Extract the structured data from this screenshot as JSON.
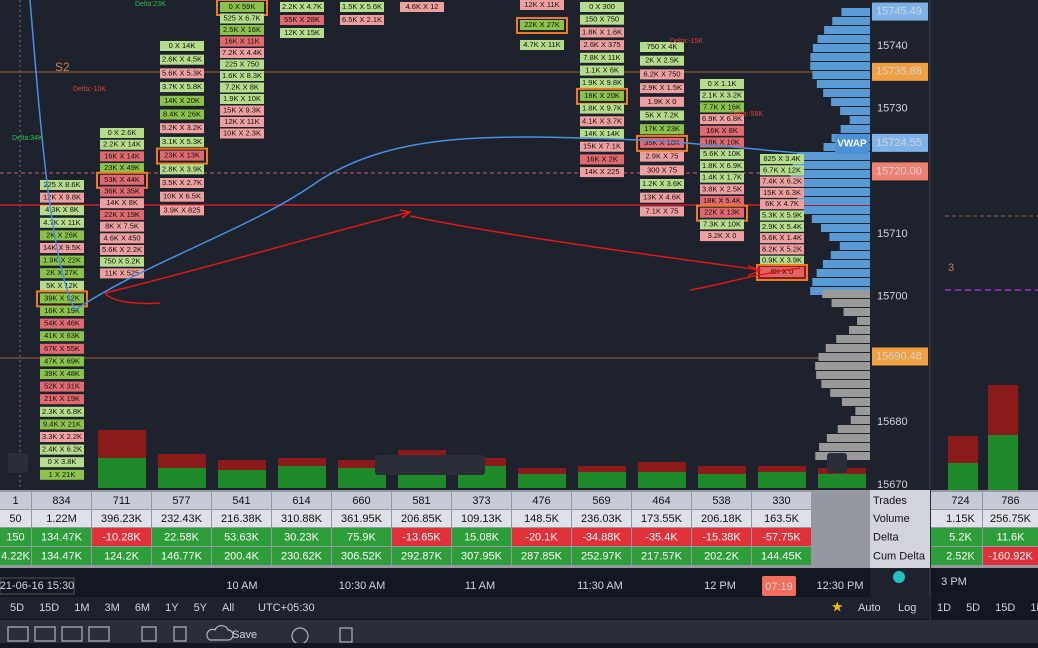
{
  "level_label": "S2",
  "vwap_label": "VWAP",
  "price_axis": [
    "15740",
    "15730",
    "15710",
    "15700",
    "15680",
    "15670"
  ],
  "price_badges": [
    {
      "label": "15745.49",
      "color": "#7fb3e8"
    },
    {
      "label": "15735.88",
      "color": "#f0a040"
    },
    {
      "label": "15724.55",
      "color": "#7fb3e8"
    },
    {
      "label": "15720.00",
      "color": "#f08070"
    },
    {
      "label": "15690.48",
      "color": "#f0a040"
    }
  ],
  "delta_notes": [
    {
      "text": "Delta:23K",
      "color": "#2ec04a"
    },
    {
      "text": "Delta:-10K",
      "color": "#e0403a"
    },
    {
      "text": "Delta:34K",
      "color": "#2ec04a"
    },
    {
      "text": "Delta:-15K",
      "color": "#e0403a"
    },
    {
      "text": "Delta:-58K",
      "color": "#e0403a"
    }
  ],
  "footprint": [
    [
      "225 X 8.6K",
      "12K X 9.8K",
      "4.3K X 8K",
      "4.7K X 11K",
      "2K X 26K",
      "14K X 9.5K",
      "1.9K X 22K",
      "2K X 27K",
      "5K X 12K",
      "39K X 92K",
      "16K X 19K",
      "54K X 46K",
      "41K X 63K",
      "67K X 55K",
      "47K X 69K",
      "39K X 48K",
      "52K X 31K",
      "21K X 19K",
      "2.3K X 6.8K",
      "9.4K X 21K",
      "3.3K X 2.2K",
      "2.4K X 6.2K",
      "0 X 3.8K",
      "1 X 21K"
    ],
    [
      "0 X 2.6K",
      "2.2K X 14K",
      "16K X 14K",
      "23K X 49K",
      "53K X 44K",
      "36K X 35K",
      "14K X 8K",
      "22K X 19K",
      "8K X 7.5K",
      "4.6K X 450",
      "5.6K X 2.2K",
      "750 X 5.2K",
      "11K X 525"
    ],
    [
      "0 X 14K",
      "2.6K X 4.5K",
      "5.6K X 5.3K",
      "3.7K X 5.8K",
      "14K X 20K",
      "8.4K X 26K",
      "5.2K X 3.2K",
      "3.1K X 5.3K",
      "23K X 13K",
      "2.8K X 3.9K",
      "3.5K X 2.7K",
      "10K X 6.5K",
      "3.9K X 825"
    ],
    [
      "0 X 59K",
      "525 X 6.7K",
      "2.5K X 16K",
      "16K X 11K",
      "7.2K X 4.4K",
      "225 X 750",
      "1.6K X 8.3K",
      "7.2K X 8K",
      "1.9K X 10K",
      "15K X 9.3K",
      "12K X 11K",
      "10K X 2.3K"
    ],
    [
      "2.2K X 4.7K",
      "55K X 28K",
      "12K X 15K"
    ],
    [
      "1.5K X 5.6K",
      "6.5K X 2.1K"
    ],
    [
      "4.6K X 12"
    ],
    [
      "12K X 11K",
      "22K X 27K",
      "4.7K X 11K"
    ],
    [
      "0 X 300",
      "150 X 750",
      "1.8K X 1.6K",
      "2.6K X 375",
      "7.8K X 11K",
      "1.1K X 6K",
      "1.9K X 9.8K",
      "18K X 20K",
      "1.8K X 9.7K",
      "4.1K X 3.7K",
      "14K X 14K",
      "15K X 7.1K",
      "16K X 2K",
      "14K X 225"
    ],
    [
      "750 X 4K",
      "2K X 2.5K",
      "6.2K X 750",
      "2.9K X 1.5K",
      "1.9K X 0",
      "5K X 7.2K",
      "17K X 23K",
      "35K X 18K",
      "2.9K X 75",
      "300 X 75",
      "1.2K X 3.6K",
      "13K X 4.6K",
      "7.1K X 75"
    ],
    [
      "0 X 1.1K",
      "2.1K X 3.2K",
      "7.7K X 16K",
      "6.9K X 6.8K",
      "16K X 8K",
      "18K X 10K",
      "5.6K X 10K",
      "1.8K X 6.9K",
      "1.4K X 1.7K",
      "3.8K X 2.5K",
      "18K X 5.4K",
      "22K X 13K",
      "7.3K X 10K",
      "3.2K X 0"
    ],
    [
      "825 X 3.4K",
      "6.7K X 12K",
      "7.4K X 6.2K",
      "15K X 6.3K",
      "6K X 4.7K",
      "5.3K X 5.9K",
      "2.9K X 5.4K",
      "5.6K X 1.4K",
      "8.2K X 5.2K",
      "0.9K X 3.9K",
      "6K X 0"
    ]
  ],
  "stats": {
    "row_labels": [
      "Trades",
      "Volume",
      "Delta",
      "Cum Delta"
    ],
    "columns": [
      [
        "1",
        "50",
        "150",
        "4.22K"
      ],
      [
        "834",
        "1.22M",
        "134.47K",
        "134.47K"
      ],
      [
        "711",
        "396.23K",
        "-10.28K",
        "124.2K"
      ],
      [
        "577",
        "232.43K",
        "22.58K",
        "146.77K"
      ],
      [
        "541",
        "216.38K",
        "53.63K",
        "200.4K"
      ],
      [
        "614",
        "310.88K",
        "30.23K",
        "230.62K"
      ],
      [
        "660",
        "361.95K",
        "75.9K",
        "306.52K"
      ],
      [
        "581",
        "206.85K",
        "-13.65K",
        "292.87K"
      ],
      [
        "373",
        "109.13K",
        "15.08K",
        "307.95K"
      ],
      [
        "476",
        "148.5K",
        "-20.1K",
        "287.85K"
      ],
      [
        "569",
        "236.03K",
        "-34.88K",
        "252.97K"
      ],
      [
        "464",
        "173.55K",
        "-35.4K",
        "217.57K"
      ],
      [
        "538",
        "206.18K",
        "-15.38K",
        "202.2K"
      ],
      [
        "330",
        "163.5K",
        "-57.75K",
        "144.45K"
      ]
    ]
  },
  "time_axis": [
    "21-06-16 15:30",
    "10 AM",
    "10:30 AM",
    "11 AM",
    "11:30 AM",
    "12 PM",
    "12:30 PM"
  ],
  "cursor_time": "07:19",
  "ranges": [
    "5D",
    "15D",
    "1M",
    "3M",
    "6M",
    "1Y",
    "5Y",
    "All"
  ],
  "timezone": "UTC+05:30",
  "scale_buttons": [
    "Auto",
    "Log"
  ],
  "save": "Save",
  "right_panel": {
    "level_label": "3",
    "columns": [
      [
        "724",
        "1.15K",
        "5.2K",
        "2.52K"
      ],
      [
        "786",
        "256.75K",
        "11.6K",
        "-160.92K"
      ]
    ],
    "time": "3 PM",
    "ranges": [
      "1D",
      "5D",
      "15D",
      "1M",
      "3M"
    ]
  }
}
